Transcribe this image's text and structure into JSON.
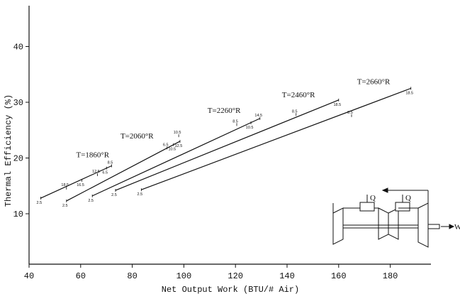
{
  "chart_data": {
    "type": "line",
    "xlabel": "Net Output Work (BTU/# Air)",
    "ylabel": "Thermal Efficiency (%)",
    "xlim": [
      40,
      190
    ],
    "ylim": [
      5,
      47
    ],
    "x_ticks": [
      40,
      60,
      80,
      100,
      120,
      140,
      160,
      180
    ],
    "y_ticks": [
      10,
      20,
      30,
      40
    ],
    "grid": false,
    "series": [
      {
        "name": "T=1860°R",
        "points": [
          {
            "x": 44.5,
            "y": 12.8,
            "label": "2.5"
          },
          {
            "x": 54.5,
            "y": 14.6,
            "label": "18.5"
          },
          {
            "x": 60.5,
            "y": 16.0,
            "label": "16.5"
          },
          {
            "x": 66.5,
            "y": 17.0,
            "label": "12.5"
          },
          {
            "x": 70.0,
            "y": 18.2,
            "label": "6.5"
          },
          {
            "x": 72.0,
            "y": 18.6,
            "label": "8.5"
          }
        ]
      },
      {
        "name": "T=2060°R",
        "points": [
          {
            "x": 54.5,
            "y": 12.3,
            "label": "2.5"
          },
          {
            "x": 93.5,
            "y": 21.8,
            "label": "6.5"
          },
          {
            "x": 96.0,
            "y": 22.4,
            "label": "10.5"
          },
          {
            "x": 98.0,
            "y": 24.0,
            "label": "10.5"
          },
          {
            "x": 98.5,
            "y": 23.0,
            "label": "12.5"
          }
        ]
      },
      {
        "name": "T=2260°R",
        "points": [
          {
            "x": 64.5,
            "y": 13.2,
            "label": "2.5"
          },
          {
            "x": 120.5,
            "y": 26.0,
            "label": "8.5"
          },
          {
            "x": 126.0,
            "y": 26.3,
            "label": "10.5"
          },
          {
            "x": 129.5,
            "y": 27.1,
            "label": "14.5"
          }
        ]
      },
      {
        "name": "T=2460°R",
        "points": [
          {
            "x": 73.5,
            "y": 14.2,
            "label": "2.5"
          },
          {
            "x": 143.5,
            "y": 27.8,
            "label": "8.5"
          },
          {
            "x": 160.0,
            "y": 30.4,
            "label": "18.5"
          }
        ]
      },
      {
        "name": "T=2660°R",
        "points": [
          {
            "x": 83.5,
            "y": 14.3,
            "label": "2.5"
          },
          {
            "x": 165.0,
            "y": 27.6,
            "label": "8.5"
          },
          {
            "x": 188.0,
            "y": 32.5,
            "label": "18.5"
          }
        ]
      }
    ],
    "inset": {
      "heat_label": "Q",
      "heat_label_2": "Q",
      "work_label": "W"
    }
  }
}
